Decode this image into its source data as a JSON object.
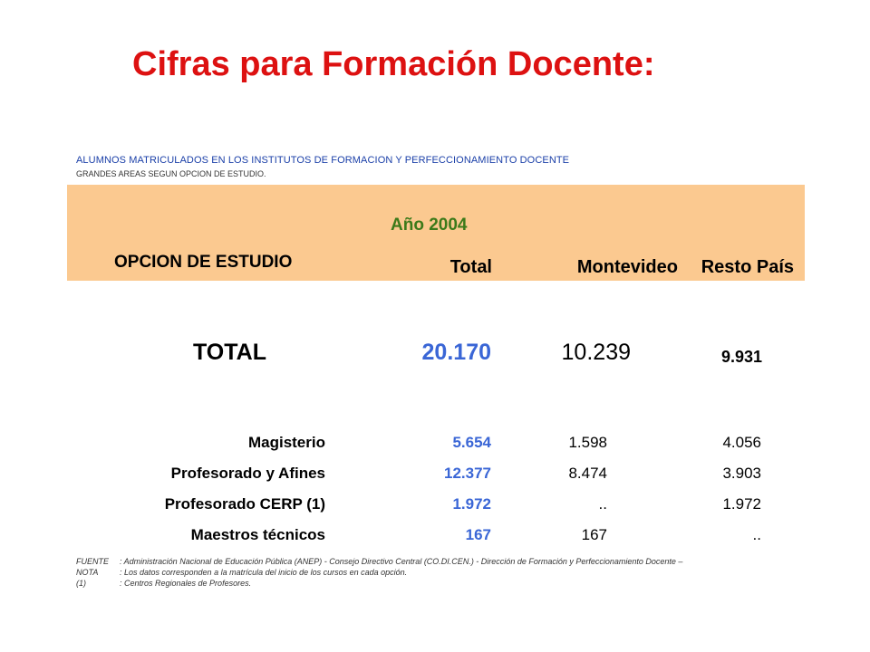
{
  "title": "Cifras para Formación Docente:",
  "subtitle1": "ALUMNOS MATRICULADOS  EN LOS INSTITUTOS  DE FORMACION  Y PERFECCIONAMIENTO  DOCENTE",
  "subtitle2": "GRANDES AREAS  SEGUN OPCION DE ESTUDIO.",
  "header": {
    "year": "Año 2004",
    "opcion": "OPCION DE ESTUDIO",
    "total": "Total",
    "montevideo": "Montevideo",
    "resto": "Resto País"
  },
  "total_row": {
    "label": "TOTAL",
    "total": "20.170",
    "montevideo": "10.239",
    "resto": "9.931"
  },
  "rows": [
    {
      "label": "Magisterio",
      "total": "5.654",
      "montevideo": "1.598",
      "resto": "4.056"
    },
    {
      "label": "Profesorado y Afines",
      "total": "12.377",
      "montevideo": "8.474",
      "resto": "3.903"
    },
    {
      "label": "Profesorado CERP (1)",
      "total": "1.972",
      "montevideo": "..",
      "resto": "1.972"
    },
    {
      "label": "Maestros técnicos",
      "total": "167",
      "montevideo": "167",
      "resto": ".."
    }
  ],
  "notes": [
    {
      "key": "FUENTE",
      "text": ": Administración Nacional de Educación Pública (ANEP) - Consejo Directivo Central (CO.DI.CEN.) - Dirección de Formación y Perfeccionamiento Docente –"
    },
    {
      "key": "NOTA",
      "text": ": Los datos corresponden a la matrícula del inicio de los cursos en cada opción."
    },
    {
      "key": "(1)",
      "text": ": Centros Regionales de Profesores."
    }
  ],
  "colors": {
    "title": "#dd1111",
    "header_band": "#fbc990",
    "year": "#3c7a1a",
    "total_values": "#3a66d6"
  }
}
